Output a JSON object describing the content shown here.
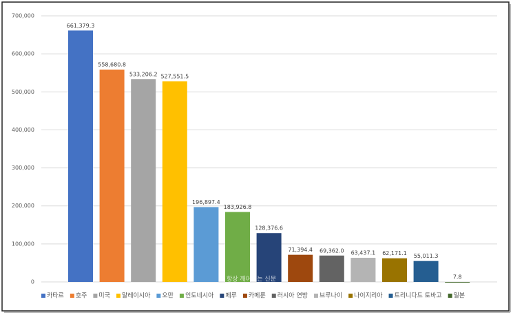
{
  "chart_data": {
    "type": "bar",
    "categories": [
      "카타르",
      "호주",
      "미국",
      "말레이시아",
      "오만",
      "인도네시아",
      "페루",
      "카메룬",
      "러시아 연방",
      "브루나이",
      "나이지리아",
      "트리니다드 토바고",
      "일본"
    ],
    "values": [
      661379.3,
      558680.8,
      533206.2,
      527551.5,
      196897.4,
      183926.8,
      128376.6,
      71394.4,
      69362.0,
      63437.1,
      62171.1,
      55011.3,
      7.8
    ],
    "value_labels": [
      "661,379.3",
      "558,680.8",
      "533,206.2",
      "527,551.5",
      "196,897.4",
      "183,926.8",
      "128,376.6",
      "71,394.4",
      "69,362.0",
      "63,437.1",
      "62,171.1",
      "55,011.3",
      "7.8"
    ],
    "colors": [
      "#4472c4",
      "#ed7d31",
      "#a5a5a5",
      "#ffc000",
      "#5b9bd5",
      "#70ad47",
      "#264478",
      "#9e480e",
      "#636363",
      "#b4b4b4",
      "#997300",
      "#255e91",
      "#43682b"
    ],
    "ylim": [
      0,
      700000
    ],
    "yticks": [
      0,
      {
        "value": 100000,
        "label": "100,000"
      },
      {
        "value": 200000,
        "label": "200,000"
      },
      {
        "value": 300000,
        "label": "300,000"
      },
      {
        "value": 400000,
        "label": "400,000"
      },
      {
        "value": 500000,
        "label": "500,000"
      },
      {
        "value": 600000,
        "label": "600,000"
      },
      {
        "value": 700000,
        "label": "700,000"
      }
    ],
    "grid": true,
    "legend": "bottom",
    "watermark": "항상 깨어있는 신문"
  }
}
